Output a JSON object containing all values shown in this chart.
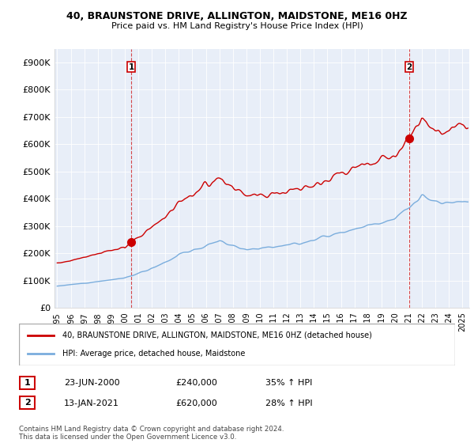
{
  "title": "40, BRAUNSTONE DRIVE, ALLINGTON, MAIDSTONE, ME16 0HZ",
  "subtitle": "Price paid vs. HM Land Registry's House Price Index (HPI)",
  "ylim": [
    0,
    950000
  ],
  "yticks": [
    0,
    100000,
    200000,
    300000,
    400000,
    500000,
    600000,
    700000,
    800000,
    900000
  ],
  "ytick_labels": [
    "£0",
    "£100K",
    "£200K",
    "£300K",
    "£400K",
    "£500K",
    "£600K",
    "£700K",
    "£800K",
    "£900K"
  ],
  "sale1_date": 2000.47,
  "sale1_price": 240000,
  "sale1_label": "1",
  "sale2_date": 2021.04,
  "sale2_price": 620000,
  "sale2_label": "2",
  "property_color": "#cc0000",
  "hpi_color": "#7aaddd",
  "plot_bg_color": "#e8eef8",
  "annotation1": [
    "1",
    "23-JUN-2000",
    "£240,000",
    "35% ↑ HPI"
  ],
  "annotation2": [
    "2",
    "13-JAN-2021",
    "£620,000",
    "28% ↑ HPI"
  ],
  "legend_property": "40, BRAUNSTONE DRIVE, ALLINGTON, MAIDSTONE, ME16 0HZ (detached house)",
  "legend_hpi": "HPI: Average price, detached house, Maidstone",
  "footnote": "Contains HM Land Registry data © Crown copyright and database right 2024.\nThis data is licensed under the Open Government Licence v3.0.",
  "xlim": [
    1994.8,
    2025.5
  ],
  "xticks": [
    1995,
    1996,
    1997,
    1998,
    1999,
    2000,
    2001,
    2002,
    2003,
    2004,
    2005,
    2006,
    2007,
    2008,
    2009,
    2010,
    2011,
    2012,
    2013,
    2014,
    2015,
    2016,
    2017,
    2018,
    2019,
    2020,
    2021,
    2022,
    2023,
    2024,
    2025
  ]
}
